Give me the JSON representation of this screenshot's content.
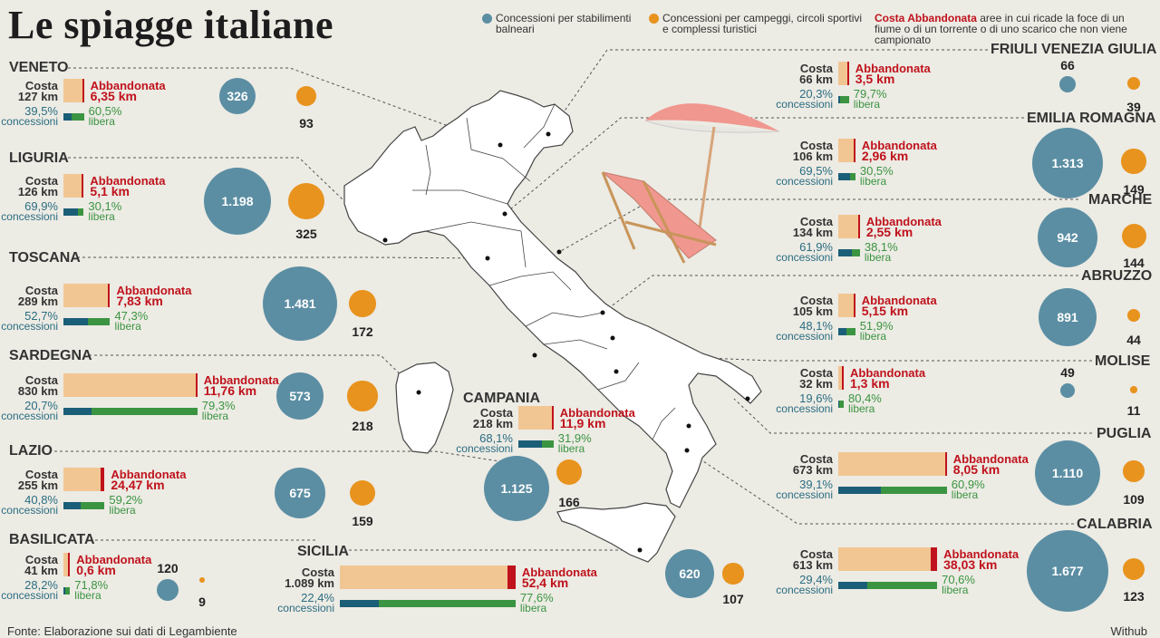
{
  "title": "Le spiagge italiane",
  "legend": {
    "balneari": "Concessioni per stabilimenti\nbalneari",
    "campeggi": "Concessioni per campeggi, circoli sportivi\ne complessi turistici",
    "abbandonata_bold": "Costa Abbandonata",
    "abbandonata_text": " aree in cui ricade la foce di un fiume o di un torrente o di uno scarico che non viene campionato"
  },
  "labels": {
    "costa": "Costa",
    "abbandonata": "Abbandonata",
    "concessioni": "concessioni",
    "libera": "libera"
  },
  "colors": {
    "balneari": "#5b8ea3",
    "campeggi": "#e8931e",
    "costa_bar": "#f2c693",
    "abbandonata": "#c0121c",
    "concessioni": "#1b5e78",
    "libera": "#3b9441"
  },
  "source": "Fonte: Elaborazione sui dati di Legambiente",
  "credit": "Withub",
  "chart_data": {
    "type": "table",
    "columns": [
      "region",
      "costa_km",
      "abbandonata_km",
      "concessioni_pct",
      "libera_pct",
      "stabilimenti_balneari",
      "campeggi_circoli_complessi"
    ],
    "regions": [
      {
        "name": "VENETO",
        "costa": "127 km",
        "abb": "6,35 km",
        "conc": "39,5%",
        "lib": "60,5%",
        "blue": "326",
        "orange": "93",
        "costa_km": 127,
        "abb_km": 6.35,
        "conc_pct": 39.5,
        "blue_n": 326,
        "orange_n": 93
      },
      {
        "name": "LIGURIA",
        "costa": "126 km",
        "abb": "5,1 km",
        "conc": "69,9%",
        "lib": "30,1%",
        "blue": "1.198",
        "orange": "325",
        "costa_km": 126,
        "abb_km": 5.1,
        "conc_pct": 69.9,
        "blue_n": 1198,
        "orange_n": 325
      },
      {
        "name": "TOSCANA",
        "costa": "289 km",
        "abb": "7,83 km",
        "conc": "52,7%",
        "lib": "47,3%",
        "blue": "1.481",
        "orange": "172",
        "costa_km": 289,
        "abb_km": 7.83,
        "conc_pct": 52.7,
        "blue_n": 1481,
        "orange_n": 172
      },
      {
        "name": "SARDEGNA",
        "costa": "830 km",
        "abb": "11,76 km",
        "conc": "20,7%",
        "lib": "79,3%",
        "blue": "573",
        "orange": "218",
        "costa_km": 830,
        "abb_km": 11.76,
        "conc_pct": 20.7,
        "blue_n": 573,
        "orange_n": 218
      },
      {
        "name": "LAZIO",
        "costa": "255 km",
        "abb": "24,47 km",
        "conc": "40,8%",
        "lib": "59,2%",
        "blue": "675",
        "orange": "159",
        "costa_km": 255,
        "abb_km": 24.47,
        "conc_pct": 40.8,
        "blue_n": 675,
        "orange_n": 159
      },
      {
        "name": "BASILICATA",
        "costa": "41 km",
        "abb": "0,6 km",
        "conc": "28,2%",
        "lib": "71,8%",
        "blue": "120",
        "orange": "9",
        "costa_km": 41,
        "abb_km": 0.6,
        "conc_pct": 28.2,
        "blue_n": 120,
        "orange_n": 9
      },
      {
        "name": "SICILIA",
        "costa": "1.089 km",
        "abb": "52,4 km",
        "conc": "22,4%",
        "lib": "77,6%",
        "blue": "620",
        "orange": "107",
        "costa_km": 1089,
        "abb_km": 52.4,
        "conc_pct": 22.4,
        "blue_n": 620,
        "orange_n": 107
      },
      {
        "name": "CAMPANIA",
        "costa": "218 km",
        "abb": "11,9 km",
        "conc": "68,1%",
        "lib": "31,9%",
        "blue": "1.125",
        "orange": "166",
        "costa_km": 218,
        "abb_km": 11.9,
        "conc_pct": 68.1,
        "blue_n": 1125,
        "orange_n": 166
      },
      {
        "name": "FRIULI VENEZIA GIULIA",
        "costa": "66 km",
        "abb": "3,5 km",
        "conc": "20,3%",
        "lib": "79,7%",
        "blue": "66",
        "orange": "39",
        "costa_km": 66,
        "abb_km": 3.5,
        "conc_pct": 20.3,
        "blue_n": 66,
        "orange_n": 39
      },
      {
        "name": "EMILIA ROMAGNA",
        "costa": "106 km",
        "abb": "2,96 km",
        "conc": "69,5%",
        "lib": "30,5%",
        "blue": "1.313",
        "orange": "149",
        "costa_km": 106,
        "abb_km": 2.96,
        "conc_pct": 69.5,
        "blue_n": 1313,
        "orange_n": 149
      },
      {
        "name": "MARCHE",
        "costa": "134 km",
        "abb": "2,55 km",
        "conc": "61,9%",
        "lib": "38,1%",
        "blue": "942",
        "orange": "144",
        "costa_km": 134,
        "abb_km": 2.55,
        "conc_pct": 61.9,
        "blue_n": 942,
        "orange_n": 144
      },
      {
        "name": "ABRUZZO",
        "costa": "105 km",
        "abb": "5,15 km",
        "conc": "48,1%",
        "lib": "51,9%",
        "blue": "891",
        "orange": "44",
        "costa_km": 105,
        "abb_km": 5.15,
        "conc_pct": 48.1,
        "blue_n": 891,
        "orange_n": 44
      },
      {
        "name": "MOLISE",
        "costa": "32 km",
        "abb": "1,3 km",
        "conc": "19,6%",
        "lib": "80,4%",
        "blue": "49",
        "orange": "11",
        "costa_km": 32,
        "abb_km": 1.3,
        "conc_pct": 19.6,
        "blue_n": 49,
        "orange_n": 11
      },
      {
        "name": "PUGLIA",
        "costa": "673 km",
        "abb": "8,05 km",
        "conc": "39,1%",
        "lib": "60,9%",
        "blue": "1.110",
        "orange": "109",
        "costa_km": 673,
        "abb_km": 8.05,
        "conc_pct": 39.1,
        "blue_n": 1110,
        "orange_n": 109
      },
      {
        "name": "CALABRIA",
        "costa": "613 km",
        "abb": "38,03 km",
        "conc": "29,4%",
        "lib": "70,6%",
        "blue": "1.677",
        "orange": "123",
        "costa_km": 613,
        "abb_km": 38.03,
        "conc_pct": 29.4,
        "blue_n": 1677,
        "orange_n": 123
      }
    ]
  }
}
